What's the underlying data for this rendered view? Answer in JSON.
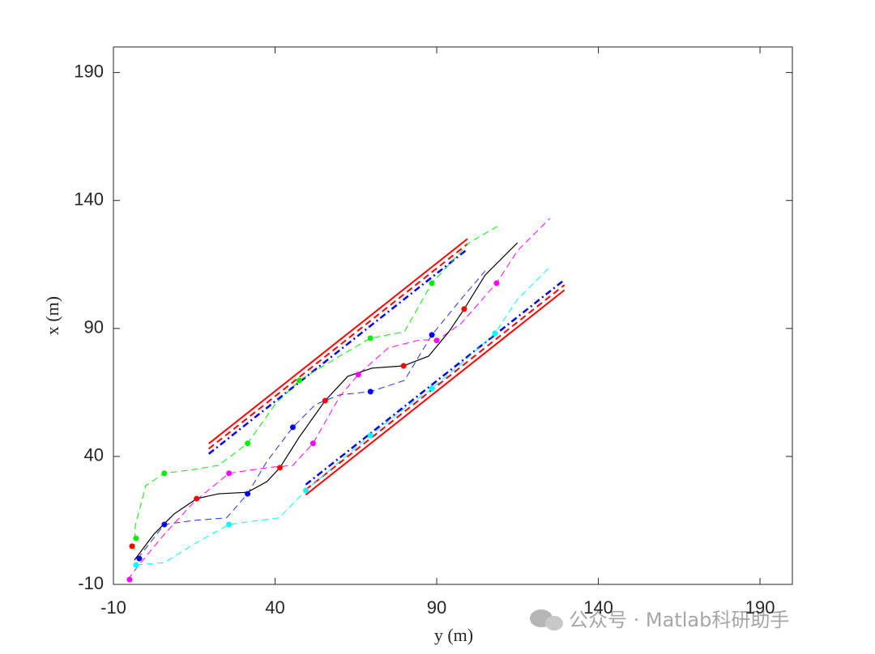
{
  "chart_data": {
    "type": "line",
    "xlabel": "y (m)",
    "ylabel": "x (m)",
    "xlim": [
      -10,
      200
    ],
    "ylim": [
      -10,
      200
    ],
    "xticks": [
      -10,
      40,
      90,
      140,
      190
    ],
    "yticks": [
      -10,
      40,
      90,
      140,
      190
    ],
    "annotation": "公众号 · Matlab科研助手",
    "series": [
      {
        "color": "#ff0000",
        "style": "solid",
        "width": 2,
        "x": [
          19.5,
          99.5
        ],
        "values": [
          45,
          125
        ]
      },
      {
        "color": "#ff0000",
        "style": "dashed",
        "width": 2,
        "x": [
          19.5,
          99.5
        ],
        "values": [
          43,
          123
        ]
      },
      {
        "color": "#0000ff",
        "style": "dashdot",
        "width": 2.5,
        "x": [
          19.5,
          99.5
        ],
        "values": [
          41,
          121
        ]
      },
      {
        "color": "#0000ff",
        "style": "dashdot",
        "width": 2.5,
        "x": [
          49.5,
          129.5
        ],
        "values": [
          29,
          109
        ]
      },
      {
        "color": "#ff0000",
        "style": "dashed",
        "width": 2,
        "x": [
          49.5,
          129.5
        ],
        "values": [
          27,
          107
        ]
      },
      {
        "color": "#ff0000",
        "style": "solid",
        "width": 2,
        "x": [
          49.5,
          129.5
        ],
        "values": [
          25,
          105
        ]
      },
      {
        "color": "#00ee00",
        "style": "dashed",
        "width": 1,
        "x": [
          -3.5,
          -3.25,
          0,
          5.75,
          15,
          22.5,
          31.5,
          40,
          47.5,
          60,
          69.5,
          80,
          88.5,
          100,
          108.75
        ],
        "values": [
          3.3,
          12.8,
          28.6,
          33.4,
          34.9,
          36.5,
          45.1,
          60.3,
          69.7,
          79.2,
          86.2,
          88.7,
          107.7,
          123.5,
          129.9
        ]
      },
      {
        "color": "#2233ee",
        "style": "dashed",
        "width": 1,
        "x": [
          -2.5,
          5.75,
          15,
          25,
          31.5,
          37.5,
          45.5,
          52.5,
          60,
          69.5,
          80,
          88.5,
          97.5,
          105
        ],
        "values": [
          0.1,
          13.4,
          15,
          16,
          25.4,
          38.1,
          51.4,
          60.3,
          64.1,
          65.3,
          69.7,
          87.5,
          101.4,
          112.5
        ]
      },
      {
        "color": "#ff00ff",
        "style": "dashed",
        "width": 1,
        "x": [
          -5.5,
          -2.5,
          5.75,
          15,
          25.75,
          37.5,
          45.5,
          51.75,
          60,
          65.75,
          75,
          85,
          90,
          97.5,
          108.5,
          115,
          125
        ],
        "values": [
          -8.1,
          -3,
          9.6,
          22.3,
          33.4,
          35.6,
          36.5,
          45.1,
          63.4,
          72,
          82.4,
          85.6,
          85.3,
          91.9,
          107.7,
          120.4,
          133
        ]
      },
      {
        "color": "#00ffff",
        "style": "dashed",
        "width": 1,
        "x": [
          -3,
          5.75,
          15,
          25.75,
          35,
          41.25,
          49.5,
          60,
          69.5,
          80,
          88.5,
          97.5,
          108,
          115,
          125
        ],
        "values": [
          -2.4,
          -1.5,
          5.8,
          13.4,
          15,
          16,
          26.7,
          38.1,
          48.2,
          58.7,
          66.6,
          76.1,
          88.1,
          101.4,
          114
        ]
      },
      {
        "color": "#000000",
        "style": "solid",
        "width": 1.2,
        "x": [
          -3.5,
          2.5,
          8.75,
          15.75,
          22.5,
          31.5,
          37.5,
          41.5,
          47.5,
          55.5,
          62.5,
          70,
          79.75,
          87.5,
          93.75,
          98.5,
          105,
          115
        ],
        "values": [
          -0.5,
          9.6,
          17.5,
          23.5,
          25.4,
          26,
          30.2,
          35.6,
          47.6,
          61.8,
          71.3,
          74.5,
          75.4,
          79.2,
          88.7,
          97.6,
          110.9,
          123.5
        ]
      }
    ],
    "points": [
      {
        "color": "#00ee00",
        "x": [
          -3,
          5.75,
          31.5,
          47.5,
          69.5,
          88.5
        ],
        "values": [
          8,
          33.4,
          45.1,
          69.7,
          86.2,
          107.7
        ]
      },
      {
        "color": "#0000ff",
        "x": [
          -2,
          5.75,
          31.5,
          45.5,
          69.5,
          88.5
        ],
        "values": [
          0.1,
          13.4,
          25.4,
          51.4,
          65.3,
          87.5
        ]
      },
      {
        "color": "#ff00ff",
        "x": [
          -5,
          25.75,
          51.75,
          65.75,
          90,
          108.5
        ],
        "values": [
          -8.1,
          33.4,
          45.1,
          72,
          85.3,
          107.7
        ]
      },
      {
        "color": "#00ffff",
        "x": [
          -3,
          25.75,
          49.5,
          69.5,
          88.5,
          108
        ],
        "values": [
          -2.4,
          13.4,
          26.7,
          48.2,
          66.6,
          88.1
        ]
      },
      {
        "color": "#ff0000",
        "x": [
          -4.25,
          15.75,
          41.5,
          55.5,
          79.75,
          98.5
        ],
        "values": [
          4.9,
          23.5,
          35.6,
          61.8,
          75.4,
          97.6
        ]
      }
    ]
  }
}
